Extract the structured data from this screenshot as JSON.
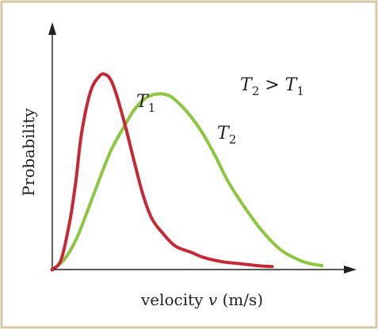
{
  "chart_data": {
    "type": "line",
    "x_label": {
      "prefix": "velocity ",
      "symbol": "v",
      "suffix": " (m/s)"
    },
    "y_label": "Probability",
    "annotation": {
      "lhs_base": "T",
      "lhs_sub": "2",
      "operator": " > ",
      "rhs_base": "T",
      "rhs_sub": "1"
    },
    "series": [
      {
        "name_base": "T",
        "name_sub": "1",
        "color": "#c42a35",
        "x": [
          0.0,
          0.03,
          0.06,
          0.08,
          0.1,
          0.13,
          0.16,
          0.18,
          0.2,
          0.22,
          0.25,
          0.28,
          0.31,
          0.34,
          0.38,
          0.42,
          0.47,
          0.52,
          0.58,
          0.64,
          0.7,
          0.75
        ],
        "y": [
          0.0,
          0.05,
          0.25,
          0.45,
          0.7,
          0.91,
          0.99,
          1.0,
          0.97,
          0.89,
          0.73,
          0.55,
          0.38,
          0.26,
          0.18,
          0.12,
          0.09,
          0.06,
          0.04,
          0.03,
          0.02,
          0.015
        ]
      },
      {
        "name_base": "T",
        "name_sub": "2",
        "color": "#8dc641",
        "x": [
          0.0,
          0.04,
          0.08,
          0.12,
          0.16,
          0.2,
          0.24,
          0.28,
          0.32,
          0.36,
          0.4,
          0.44,
          0.48,
          0.52,
          0.56,
          0.6,
          0.66,
          0.72,
          0.78,
          0.84,
          0.88,
          0.92
        ],
        "y": [
          0.0,
          0.05,
          0.15,
          0.3,
          0.46,
          0.61,
          0.72,
          0.82,
          0.88,
          0.9,
          0.89,
          0.84,
          0.77,
          0.68,
          0.57,
          0.45,
          0.31,
          0.19,
          0.1,
          0.05,
          0.03,
          0.02
        ]
      }
    ],
    "xlim": [
      0,
      1
    ],
    "ylim": [
      0,
      1.3
    ],
    "grid": false,
    "legend": "none"
  },
  "colors": {
    "frame_border": "#d6c9a6",
    "axis": "#231f20",
    "origin_dot": "#c42a35"
  }
}
